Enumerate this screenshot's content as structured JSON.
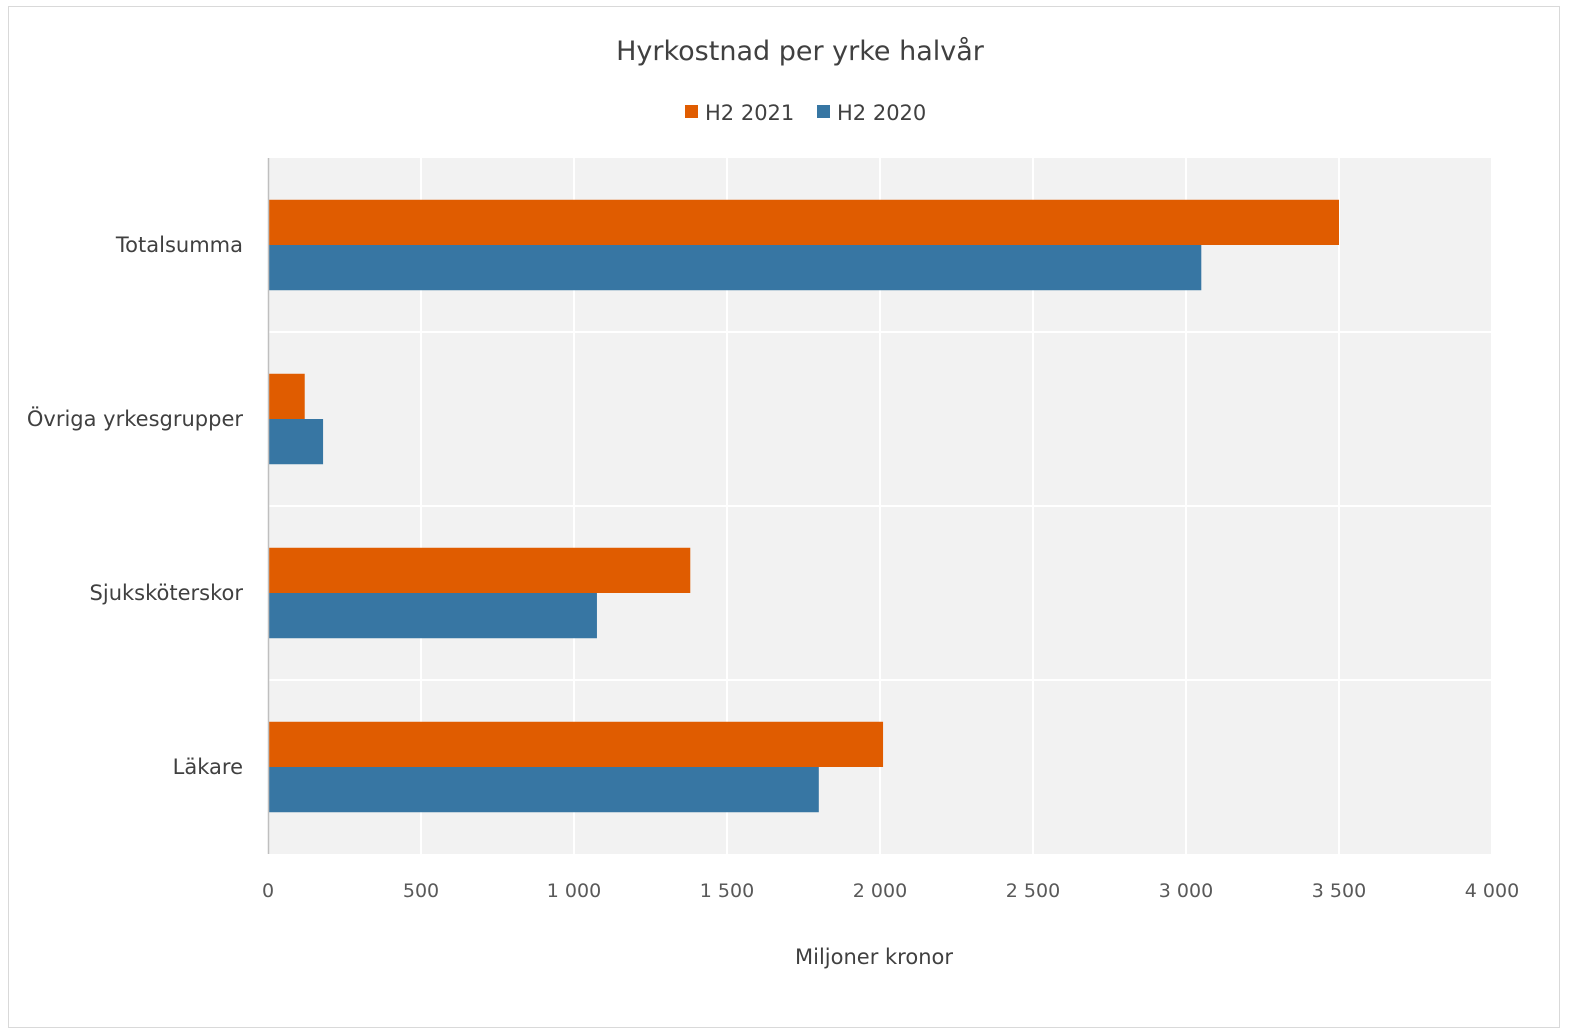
{
  "chart_data": {
    "type": "bar",
    "orientation": "horizontal",
    "title": "Hyrkostnad per yrke halvår",
    "xlabel": "Miljoner kronor",
    "ylabel": "",
    "categories": [
      "Läkare",
      "Sjuksköterskor",
      "Övriga yrkesgrupper",
      "Totalsumma"
    ],
    "series": [
      {
        "name": "H2 2021",
        "color": "#e05c00",
        "values": [
          2010,
          1380,
          120,
          3500
        ]
      },
      {
        "name": "H2 2020",
        "color": "#3776a3",
        "values": [
          1800,
          1075,
          180,
          3050
        ]
      }
    ],
    "xlim": [
      0,
      4000
    ],
    "xticks": [
      0,
      500,
      1000,
      1500,
      2000,
      2500,
      3000,
      3500,
      4000
    ],
    "xtick_labels": [
      "0",
      "500",
      "1 000",
      "1 500",
      "2 000",
      "2 500",
      "3 000",
      "3 500",
      "4 000"
    ],
    "grid": true,
    "plot_background": "#f2f2f2",
    "legend_position": "top"
  }
}
